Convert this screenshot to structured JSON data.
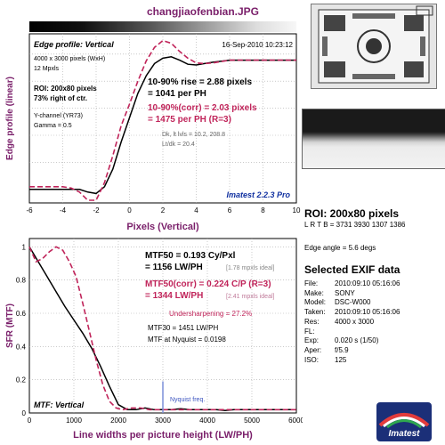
{
  "filename": "changjiaofenbian.JPG",
  "edge": {
    "header_title": "Edge profile: Vertical",
    "timestamp": "16-Sep-2010 10:23:12",
    "info_lines": [
      "4000 x 3000 pixels (WxH)",
      "12 Mpxls"
    ],
    "roi_lines": [
      "ROI: 200x80 pixels",
      "73% right of ctr."
    ],
    "channel_lines": [
      "Y-channel  (YR73)",
      "Gamma = 0.5"
    ],
    "rise_line": "10-90% rise = 2.88 pixels",
    "rise_ph": "= 1041 per PH",
    "corr_line": "10-90%(corr) = 2.03 pixels",
    "corr_ph": "= 1475 per PH  (R=3)",
    "dk_lines": [
      "Dk, lt lvls = 10.2, 208.8",
      "Lt/dk = 20.4"
    ],
    "version": "Imatest 2.2.3 Pro",
    "ylabel": "Edge profile (linear)",
    "xlabel": "Pixels (Vertical)",
    "xticks": [
      "-6",
      "-4",
      "-2",
      "0",
      "2",
      "4",
      "6",
      "8",
      "10"
    ]
  },
  "mtf": {
    "header_title": "MTF: Vertical",
    "ylabel": "SFR (MTF)",
    "xlabel": "Line widths per picture height (LW/PH)",
    "xticks": [
      "0",
      "1000",
      "2000",
      "3000",
      "4000",
      "5000",
      "6000"
    ],
    "yticks": [
      "0",
      "0.2",
      "0.4",
      "0.6",
      "0.8",
      "1"
    ],
    "mtf50_line": "MTF50 = 0.193 Cy/Pxl",
    "mtf50_lwph": "= 1156 LW/PH",
    "mtf50_ideal": "[1.78 mpxls ideal]",
    "mtf50corr_line": "MTF50(corr) = 0.224 C/P  (R=3)",
    "mtf50corr_lwph": "= 1344 LW/PH",
    "mtf50corr_ideal": "[2.41 mpxls ideal]",
    "undersharpening": "Undersharpening = 27.2%",
    "mtf30": "MTF30 = 1451 LW/PH",
    "mtf_nyquist": "MTF at Nyquist = 0.0198",
    "nyquist_label": "Nyquist freq."
  },
  "roi": {
    "title": "ROI: 200x80 pixels",
    "lrtb": "L R T B = 3731 3930 1307 1386"
  },
  "edge_angle": "Edge angle = 5.6 degs",
  "exif": {
    "title": "Selected EXIF data",
    "rows": [
      {
        "key": "File:",
        "value": "2010:09:10 05:16:06"
      },
      {
        "key": "Make:",
        "value": "SONY"
      },
      {
        "key": "Model:",
        "value": "DSC-W000"
      },
      {
        "key": "Taken:",
        "value": "2010:09:10 05:16:06"
      },
      {
        "key": "Res:",
        "value": "4000 x 3000"
      },
      {
        "key": "FL:",
        "value": ""
      },
      {
        "key": "Exp:",
        "value": "0.020 s  (1/50)"
      },
      {
        "key": "Aper:",
        "value": "f/5.9"
      },
      {
        "key": "ISO:",
        "value": "125"
      }
    ]
  },
  "logo_text": "Imatest",
  "colors": {
    "measured": "#000000",
    "corrected": "#c0245a",
    "title": "#7a1f6a",
    "version": "#1030a0",
    "nyquist": "#7b8fd8"
  },
  "chart_data": [
    {
      "type": "line",
      "title": "Edge profile: Vertical",
      "xlabel": "Pixels (Vertical)",
      "ylabel": "Edge profile (linear)",
      "xlim": [
        -6,
        10
      ],
      "ylim": [
        -0.1,
        1.15
      ],
      "grid": true,
      "series": [
        {
          "x": [
            -6,
            -5,
            -4,
            -3,
            -2.5,
            -2,
            -1.5,
            -1,
            -0.5,
            0,
            0.5,
            1,
            1.5,
            2,
            2.5,
            3,
            3.5,
            4,
            4.5,
            5,
            6,
            7,
            8,
            9,
            10
          ],
          "y": [
            0,
            0,
            0,
            0,
            -0.02,
            -0.03,
            0.02,
            0.15,
            0.35,
            0.53,
            0.71,
            0.84,
            0.93,
            0.97,
            0.98,
            0.955,
            0.925,
            0.92,
            0.93,
            0.94,
            0.955,
            0.955,
            0.955,
            0.955,
            0.955
          ]
        },
        {
          "x": [
            -6,
            -5,
            -4,
            -3.5,
            -3,
            -2.5,
            -2,
            -1.5,
            -1,
            -0.5,
            0,
            0.5,
            1,
            1.5,
            2,
            2.5,
            3,
            3.5,
            4,
            4.5,
            5,
            6,
            7,
            8,
            9,
            10
          ],
          "y": [
            0.02,
            0.02,
            0.02,
            0.01,
            -0.02,
            -0.08,
            -0.08,
            0.05,
            0.25,
            0.47,
            0.63,
            0.8,
            0.95,
            1.05,
            1.1,
            1.08,
            1.02,
            0.97,
            0.935,
            0.93,
            0.935,
            0.955,
            0.955,
            0.955,
            0.955,
            0.955
          ]
        }
      ]
    },
    {
      "type": "line",
      "title": "MTF: Vertical",
      "xlabel": "Line widths per picture height (LW/PH)",
      "ylabel": "SFR (MTF)",
      "xlim": [
        0,
        6000
      ],
      "ylim": [
        0,
        1.05
      ],
      "grid": true,
      "series": [
        {
          "x": [
            0,
            200,
            400,
            600,
            800,
            1000,
            1200,
            1400,
            1600,
            1800,
            2000,
            2200,
            2400,
            2600,
            2800,
            3000,
            3200,
            3400,
            3600,
            3800,
            4000,
            4200,
            4400,
            4600,
            4800,
            5000,
            5200,
            5400,
            5600,
            5800,
            6000
          ],
          "y": [
            1,
            0.91,
            0.82,
            0.73,
            0.64,
            0.56,
            0.48,
            0.39,
            0.28,
            0.16,
            0.05,
            0.02,
            0.02,
            0.03,
            0.02,
            0.02,
            0.02,
            0.025,
            0.02,
            0.02,
            0.02,
            0.02,
            0.015,
            0.02,
            0.02,
            0.02,
            0.02,
            0.02,
            0.02,
            0.02,
            0.02
          ]
        },
        {
          "x": [
            0,
            150,
            300,
            450,
            600,
            750,
            900,
            1050,
            1200,
            1350,
            1500,
            1650,
            1800,
            1950,
            2100,
            2300,
            2500,
            2700,
            2900,
            3100,
            3300,
            3500,
            3700,
            3900,
            4100,
            4300,
            4500,
            4700,
            4900,
            5100,
            5300,
            5500,
            5700,
            5900,
            6000
          ],
          "y": [
            1,
            0.91,
            0.93,
            0.97,
            1.0,
            0.98,
            0.91,
            0.82,
            0.66,
            0.49,
            0.32,
            0.17,
            0.07,
            0.03,
            0.02,
            0.03,
            0.03,
            0.02,
            0.02,
            0.02,
            0.02,
            0.02,
            0.02,
            0.02,
            0.02,
            0.02,
            0.02,
            0.02,
            0.02,
            0.02,
            0.02,
            0.02,
            0.02,
            0.02,
            0.02
          ]
        }
      ],
      "annotations": [
        {
          "label": "Nyquist freq.",
          "x": 3000
        }
      ]
    }
  ]
}
